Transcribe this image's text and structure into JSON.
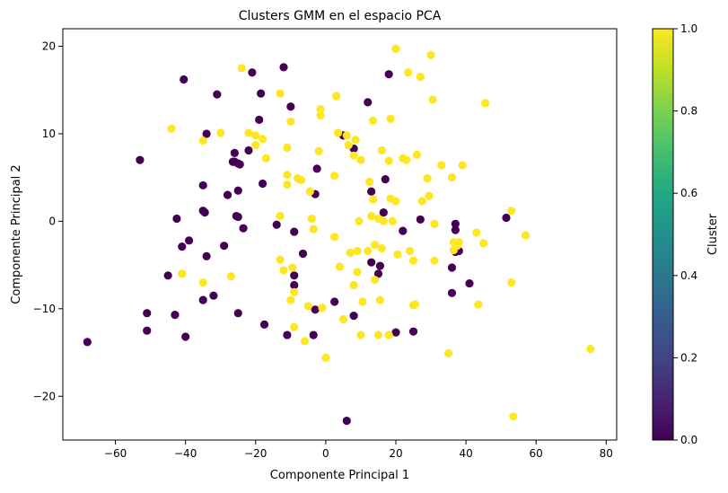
{
  "chart_data": {
    "type": "scatter",
    "title": "Clusters GMM en el espacio PCA",
    "xlabel": "Componente Principal 1",
    "ylabel": "Componente Principal 2",
    "xlim": [
      -75,
      83
    ],
    "ylim": [
      -25,
      22
    ],
    "xticks": [
      -60,
      -40,
      -20,
      0,
      20,
      40,
      60,
      80
    ],
    "yticks": [
      -20,
      -10,
      0,
      10,
      20
    ],
    "grid": false,
    "colormap": "viridis",
    "colors": {
      "cluster_0": "#440154",
      "cluster_1": "#fde725"
    },
    "colorbar": {
      "label": "Cluster",
      "range": [
        0.0,
        1.0
      ],
      "ticks": [
        "0.0",
        "0.2",
        "0.4",
        "0.6",
        "0.8",
        "1.0"
      ]
    },
    "series": [
      {
        "cluster": 0,
        "points": [
          [
            -68,
            -13.8
          ],
          [
            -53,
            7
          ],
          [
            -51,
            -10.5
          ],
          [
            -51,
            -12.5
          ],
          [
            -45,
            -6.2
          ],
          [
            -43,
            -10.7
          ],
          [
            -42.5,
            0.3
          ],
          [
            -41,
            -2.9
          ],
          [
            -40.5,
            16.2
          ],
          [
            -40,
            -13.2
          ],
          [
            -39,
            -2.2
          ],
          [
            -35,
            4.1
          ],
          [
            -35,
            1.2
          ],
          [
            -34.5,
            1.0
          ],
          [
            -34,
            -4.0
          ],
          [
            -34,
            10.0
          ],
          [
            -35,
            -9.0
          ],
          [
            -32,
            -8.5
          ],
          [
            -31,
            14.5
          ],
          [
            -29,
            -2.8
          ],
          [
            -28,
            3.0
          ],
          [
            -26.5,
            6.8
          ],
          [
            -26,
            7.8
          ],
          [
            -26,
            6.8
          ],
          [
            -25.5,
            0.6
          ],
          [
            -25,
            0.5
          ],
          [
            -25,
            -10.5
          ],
          [
            -25,
            6.6
          ],
          [
            -25,
            3.5
          ],
          [
            -24.5,
            6.5
          ],
          [
            -23.5,
            -0.8
          ],
          [
            -22,
            8.1
          ],
          [
            -21,
            17
          ],
          [
            -19,
            11.6
          ],
          [
            -18.5,
            14.6
          ],
          [
            -18,
            4.3
          ],
          [
            -17.5,
            -11.8
          ],
          [
            -14,
            -0.4
          ],
          [
            -12,
            17.6
          ],
          [
            -11,
            -13
          ],
          [
            -10,
            13.1
          ],
          [
            -9,
            -1.2
          ],
          [
            -9,
            -6.2
          ],
          [
            -9,
            -7.3
          ],
          [
            -6.5,
            -3.7
          ],
          [
            -3.5,
            -13
          ],
          [
            -3,
            3.1
          ],
          [
            -3,
            -10.1
          ],
          [
            -2.5,
            6.0
          ],
          [
            2.5,
            -9.2
          ],
          [
            5,
            9.8
          ],
          [
            6,
            -22.8
          ],
          [
            8,
            -10.8
          ],
          [
            8,
            8.3
          ],
          [
            12,
            13.6
          ],
          [
            13,
            -4.7
          ],
          [
            13,
            3.4
          ],
          [
            15,
            -6
          ],
          [
            15.5,
            -5.1
          ],
          [
            16.5,
            1.0
          ],
          [
            17,
            4.8
          ],
          [
            18,
            16.8
          ],
          [
            20,
            -12.7
          ],
          [
            22,
            -1.1
          ],
          [
            25,
            -12.6
          ],
          [
            27,
            0.2
          ],
          [
            36,
            -8.2
          ],
          [
            36,
            -5.3
          ],
          [
            37,
            -1.0
          ],
          [
            37,
            -0.3
          ],
          [
            37,
            -3.5
          ],
          [
            38,
            -3.4
          ],
          [
            41,
            -7.1
          ],
          [
            51.5,
            0.4
          ]
        ]
      },
      {
        "cluster": 1,
        "points": [
          [
            -44,
            10.6
          ],
          [
            -41,
            -6.0
          ],
          [
            -35,
            9.2
          ],
          [
            -35,
            -7.0
          ],
          [
            -30,
            10.1
          ],
          [
            -27,
            -6.3
          ],
          [
            -24,
            17.5
          ],
          [
            -22,
            10.1
          ],
          [
            -20,
            8.7
          ],
          [
            -20,
            9.8
          ],
          [
            -18,
            9.4
          ],
          [
            -17,
            7.2
          ],
          [
            -13,
            14.6
          ],
          [
            -13,
            -4.4
          ],
          [
            -13,
            0.6
          ],
          [
            -12,
            -5.6
          ],
          [
            -11,
            4.2
          ],
          [
            -11,
            8.4
          ],
          [
            -11,
            5.3
          ],
          [
            -10,
            11.4
          ],
          [
            -10,
            -9.0
          ],
          [
            -9.5,
            -5.3
          ],
          [
            -9,
            -8.1
          ],
          [
            -9,
            -12.1
          ],
          [
            -8,
            4.9
          ],
          [
            -7,
            4.7
          ],
          [
            -6,
            -13.7
          ],
          [
            -5,
            -9.7
          ],
          [
            -4.5,
            3.4
          ],
          [
            -4,
            0.3
          ],
          [
            -3.5,
            -0.9
          ],
          [
            -2,
            8.0
          ],
          [
            -1.5,
            12.1
          ],
          [
            -1.5,
            12.8
          ],
          [
            -1,
            -9.9
          ],
          [
            0,
            -15.6
          ],
          [
            2.5,
            -1.8
          ],
          [
            2.5,
            5.2
          ],
          [
            3,
            14.3
          ],
          [
            3.5,
            10.1
          ],
          [
            4,
            -5.2
          ],
          [
            5,
            -11.2
          ],
          [
            6,
            9.8
          ],
          [
            6.5,
            8.7
          ],
          [
            7,
            -3.6
          ],
          [
            8,
            -7.3
          ],
          [
            8,
            7.5
          ],
          [
            8.5,
            9.3
          ],
          [
            9,
            -3.4
          ],
          [
            9,
            -5.8
          ],
          [
            9.5,
            0.0
          ],
          [
            10,
            -13
          ],
          [
            10,
            7.0
          ],
          [
            10.5,
            -9.2
          ],
          [
            12,
            -3.4
          ],
          [
            12.5,
            4.5
          ],
          [
            13,
            0.6
          ],
          [
            13.5,
            2.5
          ],
          [
            13.5,
            11.5
          ],
          [
            14,
            -6.7
          ],
          [
            14,
            -2.7
          ],
          [
            15,
            0.3
          ],
          [
            15,
            -13
          ],
          [
            15.5,
            -9
          ],
          [
            16,
            8.1
          ],
          [
            16,
            -3.1
          ],
          [
            16.5,
            0.0
          ],
          [
            18,
            -13
          ],
          [
            18,
            6.9
          ],
          [
            18.5,
            2.6
          ],
          [
            18.5,
            11.7
          ],
          [
            19,
            0.0
          ],
          [
            20,
            19.7
          ],
          [
            20,
            2.3
          ],
          [
            20.5,
            -3.8
          ],
          [
            22,
            7.2
          ],
          [
            23,
            7.0
          ],
          [
            23.5,
            17.0
          ],
          [
            24,
            -3.4
          ],
          [
            25,
            -4.5
          ],
          [
            25,
            -9.6
          ],
          [
            25.5,
            -9.5
          ],
          [
            26,
            7.6
          ],
          [
            27,
            16.5
          ],
          [
            27.5,
            2.3
          ],
          [
            29,
            4.9
          ],
          [
            29.5,
            2.9
          ],
          [
            30,
            19
          ],
          [
            30.5,
            13.9
          ],
          [
            31,
            -0.3
          ],
          [
            31,
            -4.5
          ],
          [
            33,
            6.4
          ],
          [
            35,
            -15.1
          ],
          [
            36,
            5.0
          ],
          [
            36.5,
            -2.4
          ],
          [
            36.5,
            -3.3
          ],
          [
            37.5,
            -2.8
          ],
          [
            38,
            -2.4
          ],
          [
            39,
            6.4
          ],
          [
            43,
            -1.3
          ],
          [
            43.5,
            -9.5
          ],
          [
            45,
            -2.5
          ],
          [
            45.5,
            13.5
          ],
          [
            53,
            1.2
          ],
          [
            53,
            -7.0
          ],
          [
            53.5,
            -22.3
          ],
          [
            57,
            -1.6
          ],
          [
            75.5,
            -14.6
          ]
        ]
      }
    ]
  }
}
